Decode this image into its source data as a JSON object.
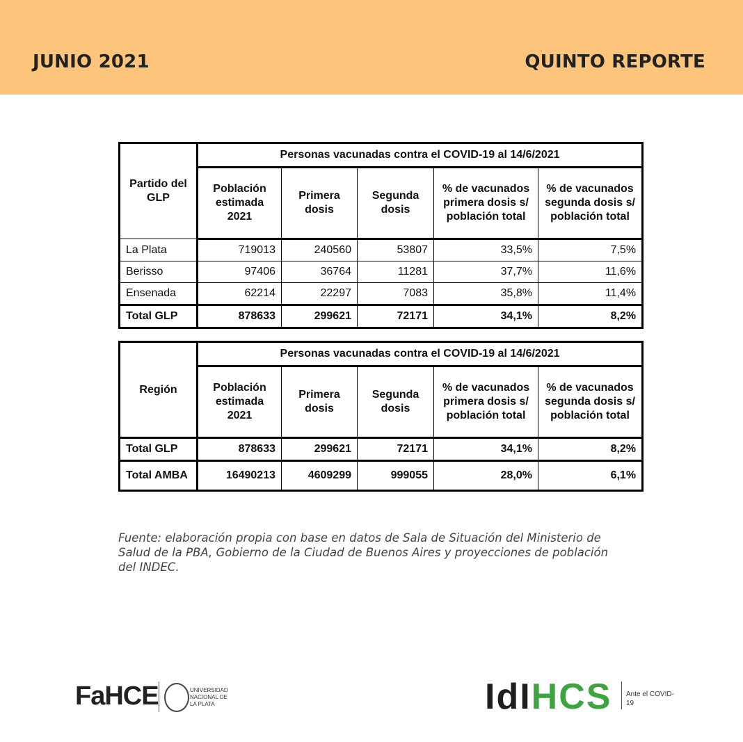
{
  "header": {
    "date": "JUNIO 2021",
    "report": "QUINTO REPORTE"
  },
  "tables": [
    {
      "caption": "Personas vacunadas contra el COVID-19 al 14/6/2021",
      "columns": [
        "Partido del GLP",
        "Población estimada 2021",
        "Primera dosis",
        "Segunda dosis",
        "% de vacunados primera dosis s/ población total",
        "% de vacunados segunda dosis s/ población total"
      ],
      "rows": [
        [
          "La Plata",
          "719013",
          "240560",
          "53807",
          "33,5%",
          "7,5%"
        ],
        [
          "Berisso",
          "97406",
          "36764",
          "11281",
          "37,7%",
          "11,6%"
        ],
        [
          "Ensenada",
          "62214",
          "22297",
          "7083",
          "35,8%",
          "11,4%"
        ],
        [
          "Total GLP",
          "878633",
          "299621",
          "72171",
          "34,1%",
          "8,2%"
        ]
      ]
    },
    {
      "caption": "Personas vacunadas contra el COVID-19 al 14/6/2021",
      "columns": [
        "Región",
        "Población estimada 2021",
        "Primera dosis",
        "Segunda dosis",
        "% de vacunados primera dosis s/ población total",
        "% de vacunados segunda dosis s/ población total"
      ],
      "rows": [
        [
          "Total GLP",
          "878633",
          "299621",
          "72171",
          "34,1%",
          "8,2%"
        ],
        [
          "Total AMBA",
          "16490213",
          "4609299",
          "999055",
          "28,0%",
          "6,1%"
        ]
      ]
    }
  ],
  "source": "Fuente: elaboración propia con base en datos de Sala de Situación del Ministerio de Salud de la PBA, Gobierno de la Ciudad de Buenos Aires y proyecciones de población del INDEC.",
  "footer": {
    "fahce": "FaHCE",
    "university": "UNIVERSIDAD NACIONAL DE LA PLATA",
    "idihcs_dark": "IdI",
    "idihcs_green": "HCS",
    "tagline": "Ante el COVID-19"
  }
}
